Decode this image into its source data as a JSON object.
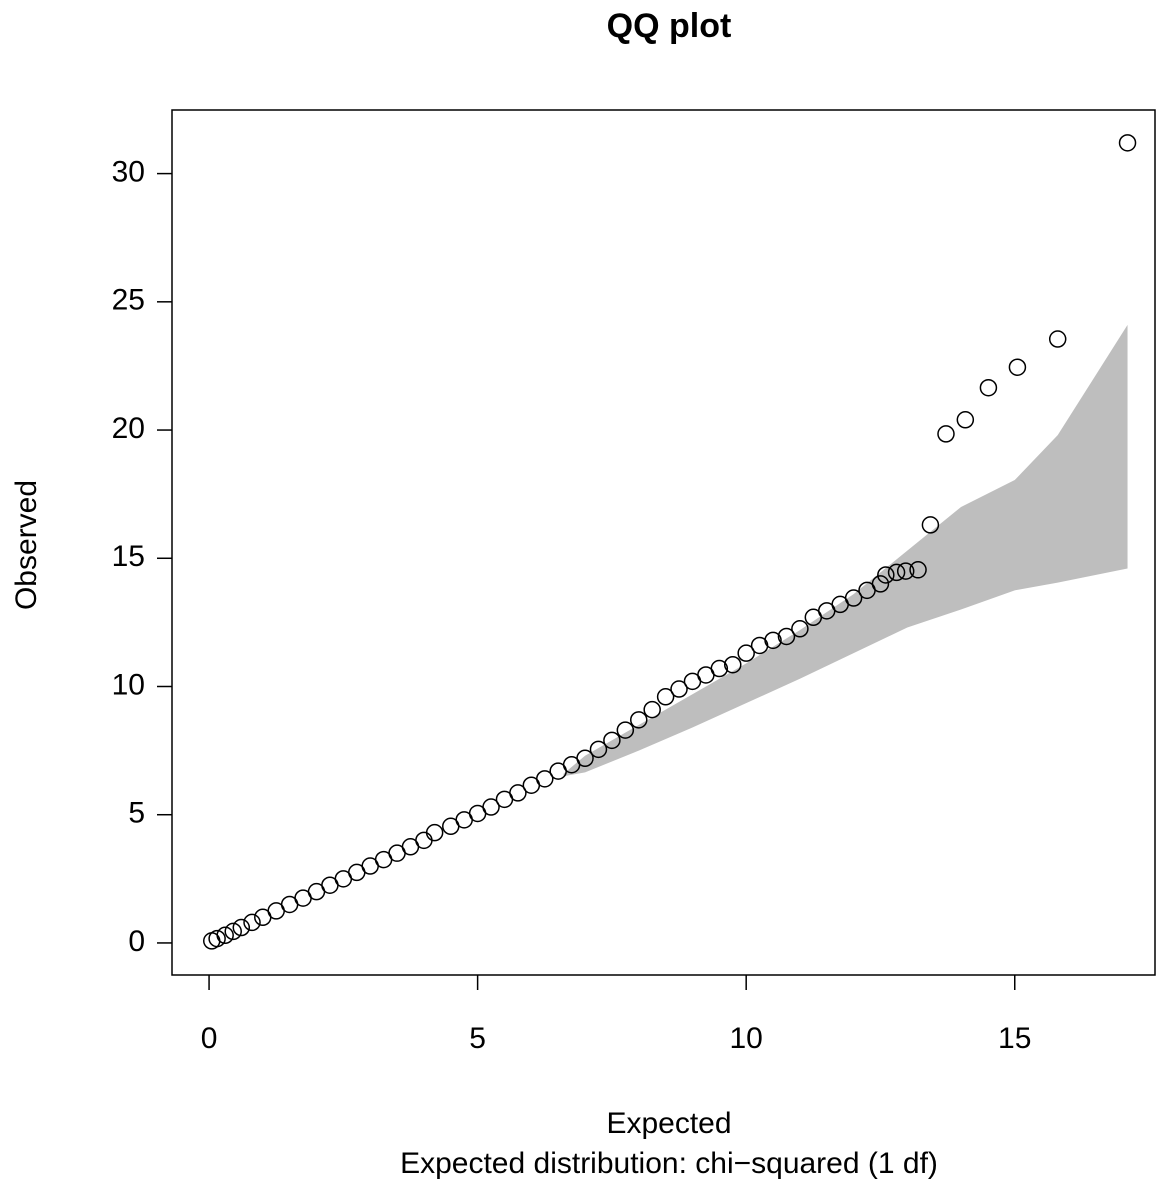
{
  "chart_data": {
    "type": "scatter",
    "title": "QQ plot",
    "x_label": "Expected",
    "subtitle": "Expected distribution: chi−squared (1 df)",
    "y_label": "Observed",
    "xlim": [
      -0.69,
      17.63
    ],
    "ylim": [
      -1.25,
      32.48
    ],
    "xticks": [
      0,
      5,
      10,
      15
    ],
    "yticks": [
      0,
      5,
      10,
      15,
      20,
      25,
      30
    ],
    "band": {
      "color": "#bebebe",
      "x": [
        6.6,
        7,
        8,
        9,
        10,
        11,
        12,
        13,
        14,
        15,
        15.8,
        17.1
      ],
      "lower": [
        6.5,
        6.65,
        7.5,
        8.4,
        9.35,
        10.3,
        11.3,
        12.3,
        13.0,
        13.75,
        14.05,
        14.6
      ],
      "upper": [
        6.6,
        7.3,
        8.5,
        9.7,
        10.9,
        12.2,
        13.6,
        15.3,
        17.0,
        18.05,
        19.8,
        24.1
      ]
    },
    "series": [
      {
        "color": "#000000",
        "x": [
          0.05,
          0.15,
          0.3,
          0.45,
          0.6,
          0.8,
          1.0,
          1.25,
          1.5,
          1.75,
          2.0,
          2.25,
          2.5,
          2.75,
          3.0,
          3.25,
          3.5,
          3.75,
          4.0,
          4.2,
          4.5,
          4.75,
          5.0,
          5.25,
          5.5,
          5.75,
          6.0,
          6.25,
          6.5,
          6.75,
          7.0,
          7.25,
          7.5,
          7.75,
          8.0,
          8.25,
          8.5,
          8.75,
          9.0,
          9.25,
          9.5,
          9.75,
          10.0,
          10.25,
          10.5,
          10.75,
          11.0,
          11.25,
          11.5,
          11.75,
          12.0,
          12.25,
          12.5,
          12.6,
          12.8,
          12.97,
          13.2,
          13.43,
          13.72,
          14.08,
          14.51,
          15.05,
          15.8,
          17.1
        ],
        "values": [
          0.08,
          0.17,
          0.3,
          0.45,
          0.6,
          0.8,
          1.0,
          1.25,
          1.5,
          1.75,
          2.0,
          2.25,
          2.5,
          2.75,
          3.0,
          3.25,
          3.5,
          3.75,
          4.0,
          4.3,
          4.55,
          4.8,
          5.05,
          5.3,
          5.6,
          5.85,
          6.15,
          6.4,
          6.7,
          6.95,
          7.2,
          7.55,
          7.9,
          8.3,
          8.7,
          9.1,
          9.6,
          9.9,
          10.2,
          10.45,
          10.7,
          10.85,
          11.3,
          11.6,
          11.8,
          11.95,
          12.25,
          12.7,
          12.95,
          13.2,
          13.45,
          13.75,
          14.0,
          14.35,
          14.45,
          14.5,
          14.55,
          16.3,
          19.85,
          20.4,
          21.65,
          22.45,
          23.55,
          31.2
        ]
      }
    ]
  }
}
